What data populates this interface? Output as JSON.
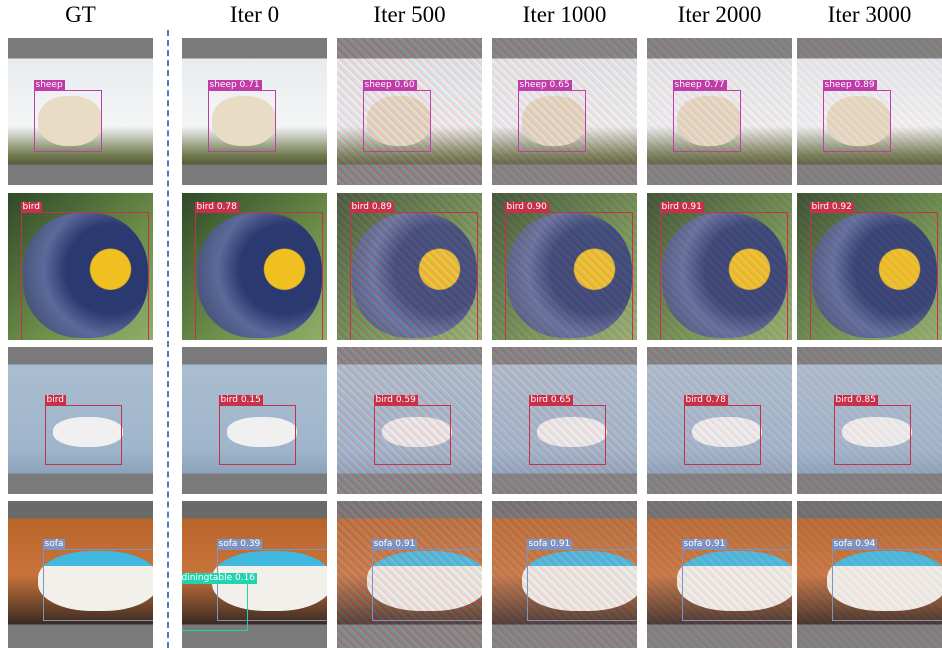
{
  "columns": [
    "GT",
    "Iter 0",
    "Iter 500",
    "Iter 1000",
    "Iter 2000",
    "Iter 3000"
  ],
  "rows": [
    [
      [
        "sheep"
      ],
      [
        "sheep 0.71"
      ],
      [
        "sheep 0.60"
      ],
      [
        "sheep 0.65"
      ],
      [
        "sheep 0.77"
      ],
      [
        "sheep 0.89"
      ]
    ],
    [
      [
        "bird"
      ],
      [
        "bird 0.78"
      ],
      [
        "bird 0.89"
      ],
      [
        "bird 0.90"
      ],
      [
        "bird 0.91"
      ],
      [
        "bird 0.92"
      ]
    ],
    [
      [
        "bird"
      ],
      [
        "bird 0.15"
      ],
      [
        "bird 0.59"
      ],
      [
        "bird 0.65"
      ],
      [
        "bird 0.78"
      ],
      [
        "bird 0.85"
      ]
    ],
    [
      [
        "sofa"
      ],
      [
        "sofa 0.39",
        "diningtable 0.16"
      ],
      [
        "sofa 0.91"
      ],
      [
        "sofa 0.91"
      ],
      [
        "sofa 0.91"
      ],
      [
        "sofa 0.94"
      ]
    ]
  ]
}
